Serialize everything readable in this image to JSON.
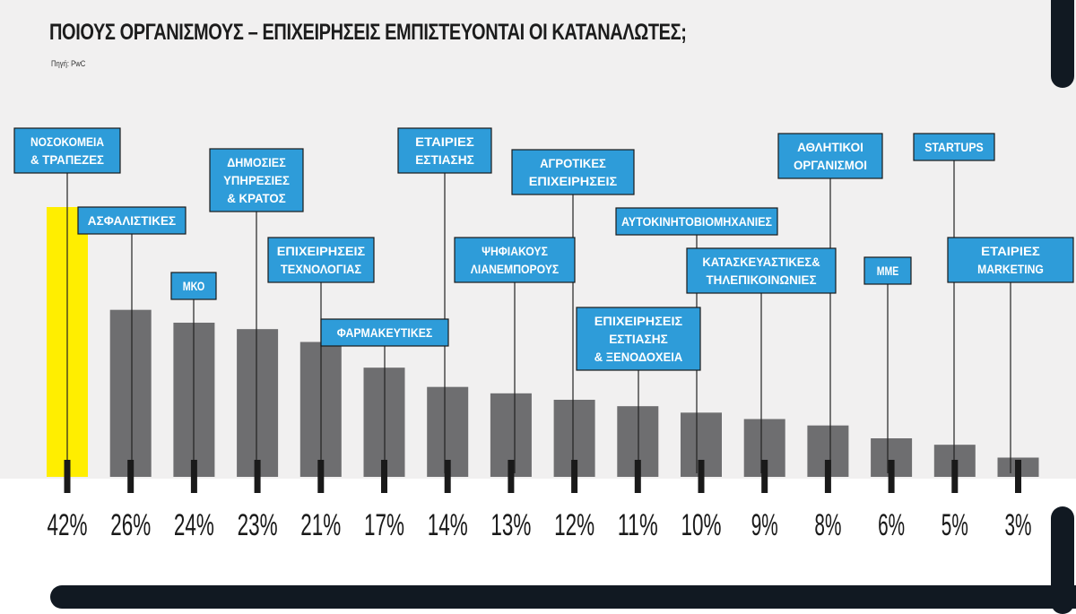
{
  "header": {
    "title": "ΠΟΙΟΥΣ ΟΡΓΑΝΙΣΜΟΥΣ – ΕΠΙΧΕΙΡΗΣΕΙΣ ΕΜΠΙΣΤΕΥΟΝΤΑΙ ΟΙ ΚΑΤΑΝΑΛΩΤΕΣ;",
    "source": "Πηγή: PwC"
  },
  "colors": {
    "bar": "#6e6e70",
    "highlight": "#ffee00",
    "label_box": "#2e9cd9",
    "background": "#f1f0f0",
    "marker": "#1a1a1a"
  },
  "chart_data": {
    "type": "bar",
    "title": "ΠΟΙΟΥΣ ΟΡΓΑΝΙΣΜΟΥΣ – ΕΠΙΧΕΙΡΗΣΕΙΣ ΕΜΠΙΣΤΕΥΟΝΤΑΙ ΟΙ ΚΑΤΑΝΑΛΩΤΕΣ;",
    "unit": "%",
    "categories": [
      [
        "ΝΟΣΟΚΟΜΕΙΑ",
        "& ΤΡΑΠΕΖΕΣ"
      ],
      [
        "ΑΣΦΑΛΙΣΤΙΚΕΣ"
      ],
      [
        "ΜΚΟ"
      ],
      [
        "ΔΗΜΟΣΙΕΣ",
        "ΥΠΗΡΕΣΙΕΣ",
        "& ΚΡΑΤΟΣ"
      ],
      [
        "ΕΠΙΧΕΙΡΗΣΕΙΣ",
        "ΤΕΧΝΟΛΟΓΙΑΣ"
      ],
      [
        "ΦΑΡΜΑΚΕΥΤΙΚΕΣ"
      ],
      [
        "ΕΤΑΙΡΙΕΣ",
        "ΕΣΤΙΑΣΗΣ"
      ],
      [
        "ΨΗΦΙΑΚΟΥΣ",
        "ΛΙΑΝΕΜΠΟΡΟΥΣ"
      ],
      [
        "ΑΓΡΟΤΙΚΕΣ",
        "ΕΠΙΧΕΙΡΗΣΕΙΣ"
      ],
      [
        "ΕΠΙΧΕΙΡΗΣΕΙΣ",
        "ΕΣΤΙΑΣΗΣ",
        "& ΞΕΝΟΔΟΧΕΙΑ"
      ],
      [
        "ΑΥΤΟΚΙΝΗΤΟΒΙΟΜΗΧΑΝΙΕΣ"
      ],
      [
        "ΚΑΤΑΣΚΕΥΑΣΤΙΚΕΣ&",
        "ΤΗΛΕΠΙΚΟΙΝΩΝΙΕΣ"
      ],
      [
        "ΑΘΛΗΤΙΚΟΙ",
        "ΟΡΓΑΝΙΣΜΟΙ"
      ],
      [
        "ΜΜΕ"
      ],
      [
        "STARTUPS"
      ],
      [
        "ΕΤΑΙΡΙΕΣ",
        "MARKETING"
      ]
    ],
    "values": [
      42,
      26,
      24,
      23,
      21,
      17,
      14,
      13,
      12,
      11,
      10,
      9,
      8,
      6,
      5,
      3
    ],
    "value_labels": [
      "42%",
      "26%",
      "24%",
      "23%",
      "21%",
      "17%",
      "14%",
      "13%",
      "12%",
      "11%",
      "10%",
      "9%",
      "8%",
      "6%",
      "5%",
      "3%"
    ],
    "highlight_index": 0,
    "ylim": [
      0,
      42
    ],
    "grid": false,
    "legend": "none"
  }
}
